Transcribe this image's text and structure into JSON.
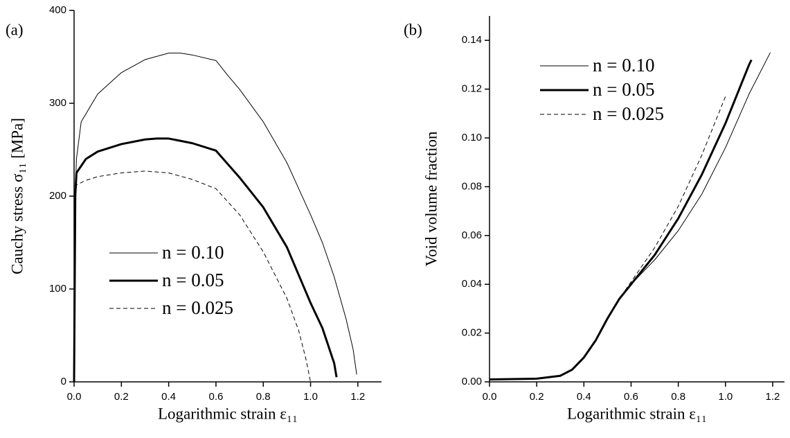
{
  "chart_data": [
    {
      "type": "line",
      "annotation": "(a)",
      "xlabel": "Logarithmic strain ε₁₁",
      "ylabel": "Cauchy stress σ₁₁ [MPa]",
      "xlim": [
        0,
        1.3
      ],
      "ylim": [
        0,
        400
      ],
      "xticks": [
        {
          "value": 0,
          "label": "0.0"
        },
        0.2,
        0.4,
        0.6,
        0.8,
        {
          "value": 1,
          "label": "1.0"
        },
        1.2
      ],
      "yticks": [
        0,
        100,
        200,
        300,
        400
      ],
      "legend": "lower left",
      "series": [
        {
          "name": "n = 0.10",
          "color": "#000000",
          "line_width": 1,
          "dash": false,
          "x": [
            0,
            0.005,
            0.01,
            0.03,
            0.1,
            0.2,
            0.3,
            0.4,
            0.45,
            0.5,
            0.6,
            0.65,
            0.7,
            0.8,
            0.9,
            1.0,
            1.05,
            1.1,
            1.15,
            1.18,
            1.195
          ],
          "values": [
            0,
            200,
            240,
            280,
            310,
            333,
            347,
            354,
            354,
            352,
            346,
            330,
            315,
            280,
            236,
            180,
            150,
            113,
            68,
            35,
            8
          ]
        },
        {
          "name": "n = 0.05",
          "color": "#000000",
          "line_width": 3,
          "dash": false,
          "x": [
            0,
            0.005,
            0.01,
            0.05,
            0.1,
            0.2,
            0.3,
            0.35,
            0.4,
            0.5,
            0.6,
            0.7,
            0.8,
            0.9,
            1.0,
            1.05,
            1.1,
            1.11
          ],
          "values": [
            0,
            200,
            225,
            240,
            248,
            256,
            261,
            262,
            262,
            257,
            249,
            220,
            188,
            145,
            85,
            58,
            20,
            5
          ]
        },
        {
          "name": "n = 0.025",
          "color": "#000000",
          "line_width": 1,
          "dash": true,
          "x": [
            0,
            0.005,
            0.01,
            0.05,
            0.1,
            0.2,
            0.3,
            0.4,
            0.5,
            0.6,
            0.7,
            0.8,
            0.9,
            0.95,
            0.98,
            1.0
          ],
          "values": [
            0,
            195,
            212,
            217,
            221,
            225,
            227,
            225,
            218,
            208,
            180,
            140,
            90,
            55,
            25,
            0
          ]
        }
      ]
    },
    {
      "type": "line",
      "annotation": "(b)",
      "xlabel": "Logarithmic strain ε₁₁",
      "ylabel": "Void volume fraction",
      "xlim": [
        0,
        1.25
      ],
      "ylim": [
        0,
        0.15
      ],
      "xticks": [
        {
          "value": 0,
          "label": "0.0"
        },
        0.2,
        0.4,
        0.6,
        0.8,
        {
          "value": 1,
          "label": "1.0"
        },
        1.2
      ],
      "yticks": [
        {
          "value": 0,
          "label": "0.00"
        },
        0.02,
        0.04,
        0.06,
        0.08,
        {
          "value": 0.1,
          "label": "0.10"
        },
        0.12,
        0.14
      ],
      "legend": "upper left",
      "series": [
        {
          "name": "n = 0.10",
          "color": "#000000",
          "line_width": 1,
          "dash": false,
          "x": [
            0,
            0.2,
            0.3,
            0.35,
            0.4,
            0.45,
            0.5,
            0.55,
            0.6,
            0.7,
            0.8,
            0.9,
            1.0,
            1.1,
            1.19
          ],
          "values": [
            0.001,
            0.0013,
            0.0025,
            0.005,
            0.01,
            0.017,
            0.026,
            0.034,
            0.04,
            0.05,
            0.062,
            0.077,
            0.096,
            0.118,
            0.135
          ]
        },
        {
          "name": "n = 0.05",
          "color": "#000000",
          "line_width": 3,
          "dash": false,
          "x": [
            0,
            0.2,
            0.3,
            0.35,
            0.4,
            0.45,
            0.5,
            0.55,
            0.6,
            0.65,
            0.7,
            0.8,
            0.9,
            1.0,
            1.1,
            1.11
          ],
          "values": [
            0.001,
            0.0013,
            0.0025,
            0.005,
            0.01,
            0.017,
            0.026,
            0.034,
            0.04,
            0.046,
            0.052,
            0.067,
            0.085,
            0.106,
            0.13,
            0.132
          ]
        },
        {
          "name": "n = 0.025",
          "color": "#000000",
          "line_width": 1,
          "dash": true,
          "x": [
            0,
            0.2,
            0.3,
            0.35,
            0.4,
            0.45,
            0.5,
            0.55,
            0.6,
            0.7,
            0.8,
            0.9,
            1.0
          ],
          "values": [
            0.001,
            0.0013,
            0.0025,
            0.005,
            0.01,
            0.017,
            0.026,
            0.034,
            0.041,
            0.055,
            0.072,
            0.093,
            0.117
          ]
        }
      ]
    }
  ]
}
